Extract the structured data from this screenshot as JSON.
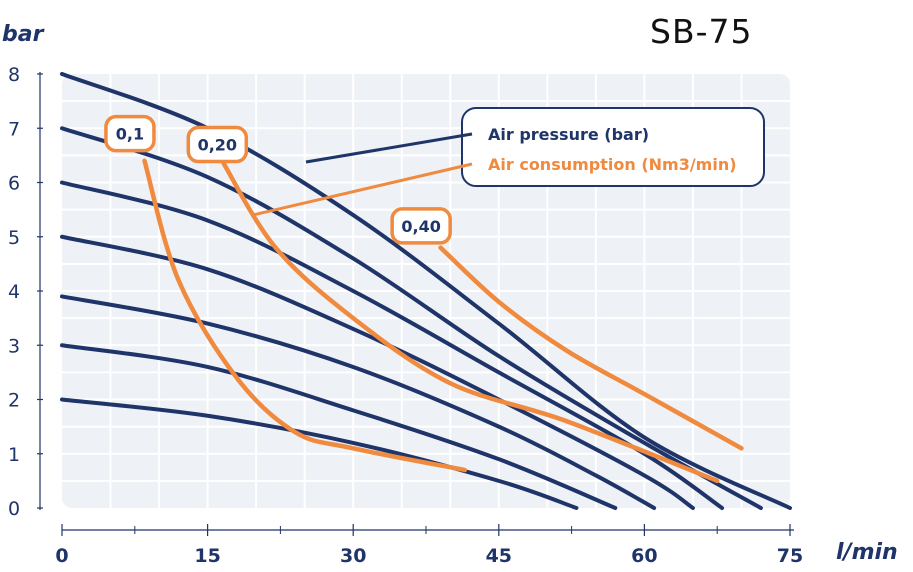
{
  "model": "SB-75",
  "colors": {
    "background": "#ffffff",
    "plot_bg": "#eef1f6",
    "grid": "#ffffff",
    "pressure_curve": "#1f3468",
    "consumption_curve": "#ef8a3f",
    "axis": "#1f3468"
  },
  "chart_data": {
    "type": "line",
    "xlabel": "l/min",
    "ylabel": "bar",
    "xlim": [
      0,
      75
    ],
    "ylim": [
      0,
      8
    ],
    "x_ticks": [
      "0",
      "15",
      "30",
      "45",
      "60",
      "75"
    ],
    "y_ticks": [
      "0",
      "1",
      "2",
      "3",
      "4",
      "5",
      "6",
      "7",
      "8"
    ],
    "grid": true,
    "legend_position": "top-right",
    "legend": [
      {
        "label": "Air pressure (bar)",
        "color": "#1f3468"
      },
      {
        "label": "Air consumption (Nm3/min)",
        "color": "#ef8a3f"
      }
    ],
    "series_pressure": [
      {
        "name": "",
        "points": [
          [
            0,
            8.0
          ],
          [
            15,
            7.0
          ],
          [
            30,
            5.4
          ],
          [
            45,
            3.4
          ],
          [
            60,
            1.3
          ],
          [
            75,
            0.0
          ]
        ]
      },
      {
        "name": "",
        "points": [
          [
            0,
            7.0
          ],
          [
            15,
            6.1
          ],
          [
            30,
            4.6
          ],
          [
            45,
            2.8
          ],
          [
            60,
            1.2
          ],
          [
            72,
            0.0
          ]
        ]
      },
      {
        "name": "",
        "points": [
          [
            0,
            6.0
          ],
          [
            15,
            5.3
          ],
          [
            30,
            4.0
          ],
          [
            45,
            2.5
          ],
          [
            60,
            1.0
          ],
          [
            68,
            0.0
          ]
        ]
      },
      {
        "name": "",
        "points": [
          [
            0,
            5.0
          ],
          [
            15,
            4.4
          ],
          [
            30,
            3.3
          ],
          [
            45,
            2.0
          ],
          [
            60,
            0.6
          ],
          [
            65,
            0.0
          ]
        ]
      },
      {
        "name": "",
        "points": [
          [
            0,
            3.9
          ],
          [
            15,
            3.4
          ],
          [
            30,
            2.6
          ],
          [
            45,
            1.5
          ],
          [
            55,
            0.6
          ],
          [
            61,
            0.0
          ]
        ]
      },
      {
        "name": "",
        "points": [
          [
            0,
            3.0
          ],
          [
            15,
            2.6
          ],
          [
            30,
            1.8
          ],
          [
            45,
            0.9
          ],
          [
            57,
            0.0
          ]
        ]
      },
      {
        "name": "",
        "points": [
          [
            0,
            2.0
          ],
          [
            15,
            1.7
          ],
          [
            30,
            1.2
          ],
          [
            45,
            0.5
          ],
          [
            53,
            0.0
          ]
        ]
      }
    ],
    "series_consumption": [
      {
        "name": "0,1",
        "points": [
          [
            8.5,
            6.4
          ],
          [
            12,
            4.2
          ],
          [
            18,
            2.4
          ],
          [
            24,
            1.4
          ],
          [
            30,
            1.1
          ],
          [
            41.5,
            0.7
          ]
        ]
      },
      {
        "name": "0,20",
        "points": [
          [
            16.5,
            6.4
          ],
          [
            22,
            4.8
          ],
          [
            30,
            3.5
          ],
          [
            40,
            2.3
          ],
          [
            52,
            1.6
          ],
          [
            67.5,
            0.5
          ]
        ]
      },
      {
        "name": "0,40",
        "points": [
          [
            39,
            4.8
          ],
          [
            45,
            3.8
          ],
          [
            52,
            2.9
          ],
          [
            60,
            2.1
          ],
          [
            70,
            1.1
          ]
        ]
      }
    ],
    "annotations": [
      {
        "text": "0,1",
        "x": 7,
        "y": 6.9
      },
      {
        "text": "0,20",
        "x": 16,
        "y": 6.7
      },
      {
        "text": "0,40",
        "x": 37,
        "y": 5.2
      }
    ]
  }
}
